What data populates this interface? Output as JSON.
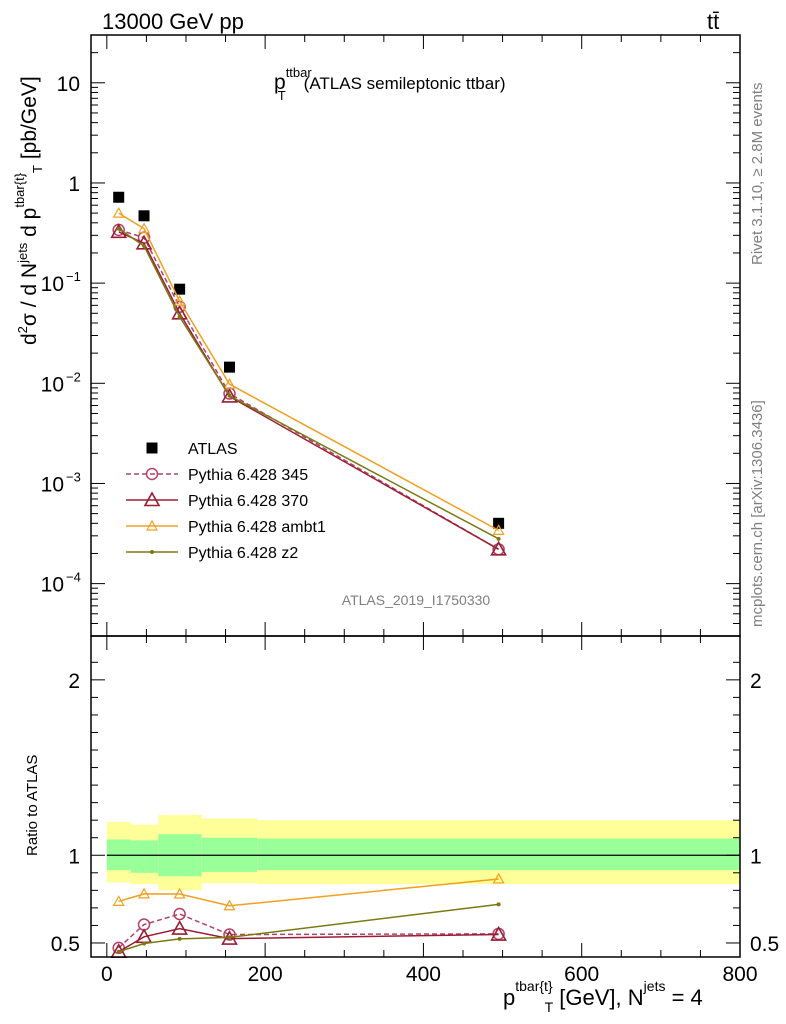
{
  "header": {
    "energy_label": "13000 GeV pp",
    "process_label": "tt̄"
  },
  "side_labels": {
    "rivet": "Rivet 3.1.10, ≥ 2.8M events",
    "mcplots": "mcplots.cern.ch [arXiv:1306.3436]"
  },
  "colors": {
    "atlas": "#000000",
    "p345": "#b2426a",
    "p370": "#9a1d34",
    "ambt1": "#f0a020",
    "z2": "#7a7a12",
    "band_inner": "#99ff99",
    "band_outer": "#ffff99"
  },
  "chart_data": [
    {
      "type": "scatter",
      "title": "p_T^ttbar (ATLAS semileptonic ttbar)",
      "title_parts": {
        "main": "p",
        "sup": "ttbar",
        "sub": "T",
        "rest": "(ATLAS semileptonic ttbar)"
      },
      "ylabel": "d²σ / d N^jets d p^tbar{t}_T [pb/GeV]",
      "ylabel_parts": {
        "a": "d",
        "a_sup": "2",
        "b": "σ  /  d N",
        "b_sup": "jets",
        "c": " d p",
        "c_sup": "tbar{t}",
        "c_sub": "T",
        "d": " [pb/GeV]"
      },
      "yscale": "log",
      "ylim": [
        3e-05,
        30
      ],
      "xlim": [
        -20,
        800
      ],
      "yticks": [
        {
          "v": 10,
          "m": "10",
          "e": ""
        },
        {
          "v": 1,
          "m": "1",
          "e": ""
        },
        {
          "v": 0.1,
          "m": "10",
          "e": "−1"
        },
        {
          "v": 0.01,
          "m": "10",
          "e": "−2"
        },
        {
          "v": 0.001,
          "m": "10",
          "e": "−3"
        },
        {
          "v": 0.0001,
          "m": "10",
          "e": "−4"
        }
      ],
      "watermark": "ATLAS_2019_I1750330",
      "legend_position": "lower-left",
      "series": [
        {
          "name": "ATLAS",
          "key": "atlas",
          "marker": "square",
          "x": [
            15,
            47,
            92,
            155,
            495
          ],
          "y": [
            0.72,
            0.47,
            0.087,
            0.0145,
            0.0004
          ]
        },
        {
          "name": "Pythia 6.428 345",
          "key": "p345",
          "marker": "circle",
          "dashed": true,
          "x": [
            15,
            47,
            92,
            155,
            495
          ],
          "y": [
            0.34,
            0.285,
            0.058,
            0.0079,
            0.00022
          ]
        },
        {
          "name": "Pythia 6.428 370",
          "key": "p370",
          "marker": "triangle",
          "x": [
            15,
            47,
            92,
            155,
            495
          ],
          "y": [
            0.325,
            0.25,
            0.05,
            0.0074,
            0.00022
          ]
        },
        {
          "name": "Pythia 6.428 ambt1",
          "key": "ambt1",
          "marker": "triangle-small",
          "x": [
            15,
            47,
            92,
            155,
            495
          ],
          "y": [
            0.5,
            0.35,
            0.066,
            0.0098,
            0.00034
          ]
        },
        {
          "name": "Pythia 6.428 z2",
          "key": "z2",
          "marker": "dot",
          "x": [
            15,
            47,
            92,
            155,
            495
          ],
          "y": [
            0.35,
            0.235,
            0.046,
            0.0075,
            0.00028
          ]
        }
      ]
    },
    {
      "type": "line",
      "ylabel": "Ratio to ATLAS",
      "xlabel": "p^tbar{t}_T [GeV], N^jets = 4",
      "xlabel_parts": {
        "a": "p",
        "a_sup": "tbar{t}",
        "a_sub": "T",
        "b": " [GeV], N",
        "b_sup": "jets",
        "c": " = 4"
      },
      "ylim": [
        0.42,
        2.25
      ],
      "xlim": [
        -20,
        800
      ],
      "yticks": [
        0.5,
        1,
        2
      ],
      "xticks": [
        0,
        200,
        400,
        600,
        800
      ],
      "bands": {
        "edges": [
          0,
          30,
          65,
          120,
          190,
          800
        ],
        "inner": [
          [
            0.915,
            1.09
          ],
          [
            0.9,
            1.085
          ],
          [
            0.88,
            1.12
          ],
          [
            0.905,
            1.1
          ],
          [
            0.915,
            1.095
          ]
        ],
        "outer": [
          [
            0.845,
            1.19
          ],
          [
            0.835,
            1.175
          ],
          [
            0.8,
            1.23
          ],
          [
            0.84,
            1.21
          ],
          [
            0.835,
            1.2
          ]
        ]
      },
      "series": [
        {
          "name": "Pythia 6.428 345",
          "key": "p345",
          "marker": "circle",
          "dashed": true,
          "x": [
            15,
            47,
            92,
            155,
            495
          ],
          "y": [
            0.472,
            0.605,
            0.665,
            0.548,
            0.552
          ]
        },
        {
          "name": "Pythia 6.428 370",
          "key": "p370",
          "marker": "triangle",
          "x": [
            15,
            47,
            92,
            155,
            495
          ],
          "y": [
            0.45,
            0.535,
            0.582,
            0.525,
            0.548
          ]
        },
        {
          "name": "Pythia 6.428 ambt1",
          "key": "ambt1",
          "marker": "triangle-small",
          "x": [
            15,
            47,
            92,
            155,
            495
          ],
          "y": [
            0.737,
            0.78,
            0.779,
            0.712,
            0.865
          ]
        },
        {
          "name": "Pythia 6.428 z2",
          "key": "z2",
          "marker": "dot",
          "x": [
            15,
            47,
            92,
            155,
            495
          ],
          "y": [
            0.45,
            0.497,
            0.523,
            0.532,
            0.72
          ]
        }
      ]
    }
  ]
}
